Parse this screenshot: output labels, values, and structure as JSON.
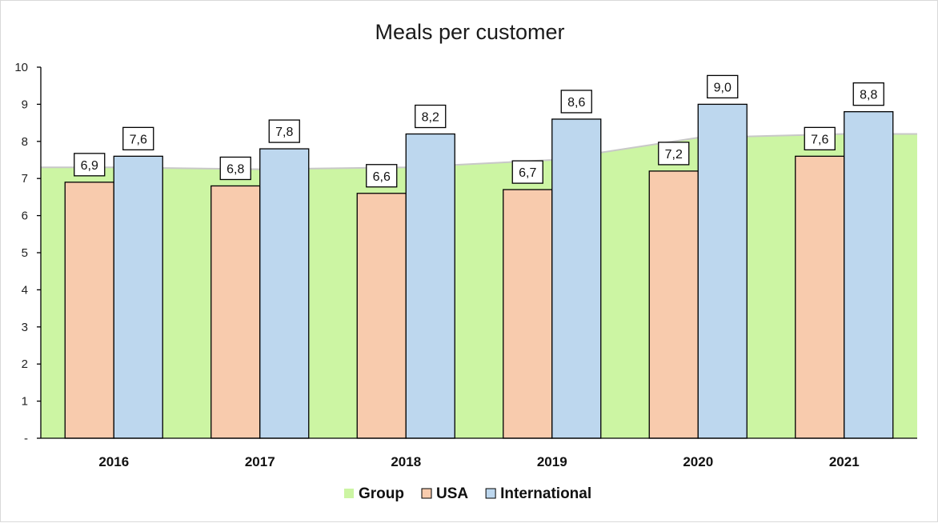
{
  "chart_data": {
    "type": "bar",
    "title": "Meals per customer",
    "xlabel": "",
    "ylabel": "",
    "categories": [
      "2016",
      "2017",
      "2018",
      "2019",
      "2020",
      "2021"
    ],
    "y_ticks": [
      "-",
      "1",
      "2",
      "3",
      "4",
      "5",
      "6",
      "7",
      "8",
      "9",
      "10"
    ],
    "ylim": [
      0,
      10
    ],
    "series": [
      {
        "name": "Group",
        "render": "area",
        "color": "#ccf5a3",
        "stroke": "#c8c8c8",
        "values": [
          7.3,
          7.25,
          7.3,
          7.5,
          8.1,
          8.2
        ]
      },
      {
        "name": "USA",
        "render": "bar",
        "color": "#f8cbad",
        "values": [
          6.9,
          6.8,
          6.6,
          6.7,
          7.2,
          7.6
        ],
        "labels": [
          "6,9",
          "6,8",
          "6,6",
          "6,7",
          "7,2",
          "7,6"
        ]
      },
      {
        "name": "International",
        "render": "bar",
        "color": "#bdd7ee",
        "values": [
          7.6,
          7.8,
          8.2,
          8.6,
          9.0,
          8.8
        ],
        "labels": [
          "7,6",
          "7,8",
          "8,2",
          "8,6",
          "9,0",
          "8,8"
        ]
      }
    ],
    "legend": {
      "position": "bottom",
      "items": [
        "Group",
        "USA",
        "International"
      ]
    },
    "grid": false
  }
}
